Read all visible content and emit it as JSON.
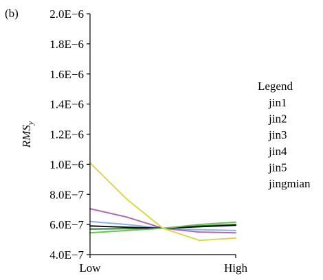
{
  "chart_data": {
    "type": "line",
    "panel_label": "(b)",
    "ylabel": {
      "base": "RMS",
      "sub": "y"
    },
    "xlabel": "",
    "x_tick_labels": [
      "Low",
      "High"
    ],
    "x": [
      0,
      0.25,
      0.5,
      0.75,
      1
    ],
    "ylim": [
      4e-07,
      2e-06
    ],
    "y_ticks": [
      {
        "value": 4e-07,
        "label": "4.0E−7"
      },
      {
        "value": 6e-07,
        "label": "6.0E−7"
      },
      {
        "value": 8e-07,
        "label": "8.0E−7"
      },
      {
        "value": 1e-06,
        "label": "1.0E−6"
      },
      {
        "value": 1.2e-06,
        "label": "1.2E−6"
      },
      {
        "value": 1.4e-06,
        "label": "1.4E−6"
      },
      {
        "value": 1.6e-06,
        "label": "1.6E−6"
      },
      {
        "value": 1.8e-06,
        "label": "1.8E−6"
      },
      {
        "value": 2e-06,
        "label": "2.0E−6"
      }
    ],
    "grid": false,
    "legend": {
      "title": "Legend",
      "placement": "right"
    },
    "series": [
      {
        "name": "jin1",
        "color": "#2e7d32",
        "values": [
          5.7e-07,
          5.72e-07,
          5.75e-07,
          5.9e-07,
          6e-07
        ]
      },
      {
        "name": "jin2",
        "color": "#8ab4e0",
        "values": [
          6.2e-07,
          6e-07,
          5.75e-07,
          5.65e-07,
          5.6e-07
        ]
      },
      {
        "name": "jin3",
        "color": "#b066b8",
        "values": [
          7.05e-07,
          6.5e-07,
          5.75e-07,
          5.5e-07,
          5.45e-07
        ]
      },
      {
        "name": "jin4",
        "color": "#0f0f0f",
        "values": [
          5.9e-07,
          5.82e-07,
          5.75e-07,
          5.85e-07,
          5.95e-07
        ]
      },
      {
        "name": "jin5",
        "color": "#6cc25a",
        "values": [
          5.45e-07,
          5.6e-07,
          5.75e-07,
          6e-07,
          6.15e-07
        ]
      },
      {
        "name": "jingmian",
        "color": "#d8d84a",
        "values": [
          1.01e-06,
          7.7e-07,
          5.75e-07,
          4.95e-07,
          5.1e-07
        ]
      }
    ]
  }
}
